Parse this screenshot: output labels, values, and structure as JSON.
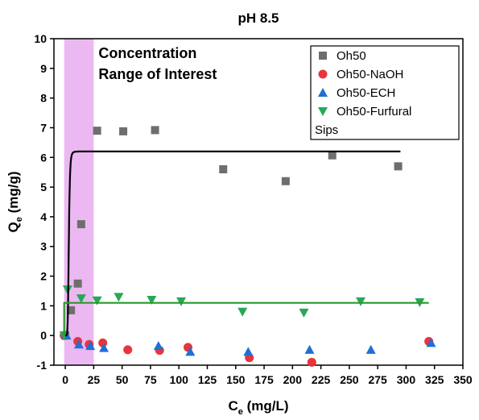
{
  "chart_data": {
    "type": "scatter",
    "title": "pH 8.5",
    "xlabel": {
      "main": "C",
      "sub": "e",
      "unit": " (mg/L)"
    },
    "ylabel": {
      "main": "Q",
      "sub": "e",
      "unit": " (mg/g)"
    },
    "xlim": [
      -10,
      350
    ],
    "ylim": [
      -1,
      10
    ],
    "xticks": [
      0,
      25,
      50,
      75,
      100,
      125,
      150,
      175,
      200,
      225,
      250,
      275,
      300,
      325,
      350
    ],
    "yticks": [
      -1,
      0,
      1,
      2,
      3,
      4,
      5,
      6,
      7,
      8,
      9,
      10
    ],
    "grid": false,
    "legend_position": "top-right",
    "highlight_region": {
      "x": [
        -1,
        25
      ],
      "color": "#ecb8f2",
      "label_lines": [
        "Concentration",
        "Range of Interest"
      ]
    },
    "series": [
      {
        "name": "Oh50",
        "marker": "square",
        "color": "#6e6e6e",
        "points": [
          [
            0,
            0
          ],
          [
            5,
            0.85
          ],
          [
            11,
            1.75
          ],
          [
            14,
            3.75
          ],
          [
            28,
            6.9
          ],
          [
            51,
            6.88
          ],
          [
            79,
            6.92
          ],
          [
            139,
            5.6
          ],
          [
            194,
            5.2
          ],
          [
            235,
            6.07
          ],
          [
            293,
            5.7
          ]
        ]
      },
      {
        "name": "Oh50-NaOH",
        "marker": "circle",
        "color": "#e8343c",
        "points": [
          [
            -1,
            0
          ],
          [
            11,
            -0.2
          ],
          [
            21,
            -0.3
          ],
          [
            33,
            -0.25
          ],
          [
            55,
            -0.48
          ],
          [
            83,
            -0.5
          ],
          [
            108,
            -0.4
          ],
          [
            162,
            -0.75
          ],
          [
            217,
            -0.9
          ],
          [
            320,
            -0.2
          ]
        ]
      },
      {
        "name": "Oh50-ECH",
        "marker": "triangle-up",
        "color": "#1f6fd6",
        "points": [
          [
            1,
            0
          ],
          [
            12,
            -0.3
          ],
          [
            22,
            -0.35
          ],
          [
            34,
            -0.42
          ],
          [
            82,
            -0.35
          ],
          [
            110,
            -0.55
          ],
          [
            161,
            -0.55
          ],
          [
            215,
            -0.48
          ],
          [
            269,
            -0.48
          ],
          [
            322,
            -0.25
          ]
        ]
      },
      {
        "name": "Oh50-Furfural",
        "marker": "triangle-down",
        "color": "#27a858",
        "points": [
          [
            -1,
            0
          ],
          [
            2,
            1.55
          ],
          [
            14,
            1.25
          ],
          [
            28,
            1.18
          ],
          [
            47,
            1.3
          ],
          [
            76,
            1.2
          ],
          [
            102,
            1.15
          ],
          [
            156,
            0.8
          ],
          [
            210,
            0.77
          ],
          [
            260,
            1.15
          ],
          [
            312,
            1.12
          ]
        ]
      },
      {
        "name": "Sips",
        "type": "line",
        "color": "#000000",
        "fit": {
          "qmax": 6.2,
          "b": 0.00062,
          "n": 6.5
        },
        "x_range": [
          0,
          295
        ]
      },
      {
        "name": "",
        "type": "line",
        "color": "#2a9a2a",
        "points": [
          [
            -1,
            0
          ],
          [
            -1,
            1.1
          ],
          [
            320,
            1.1
          ]
        ]
      }
    ]
  }
}
